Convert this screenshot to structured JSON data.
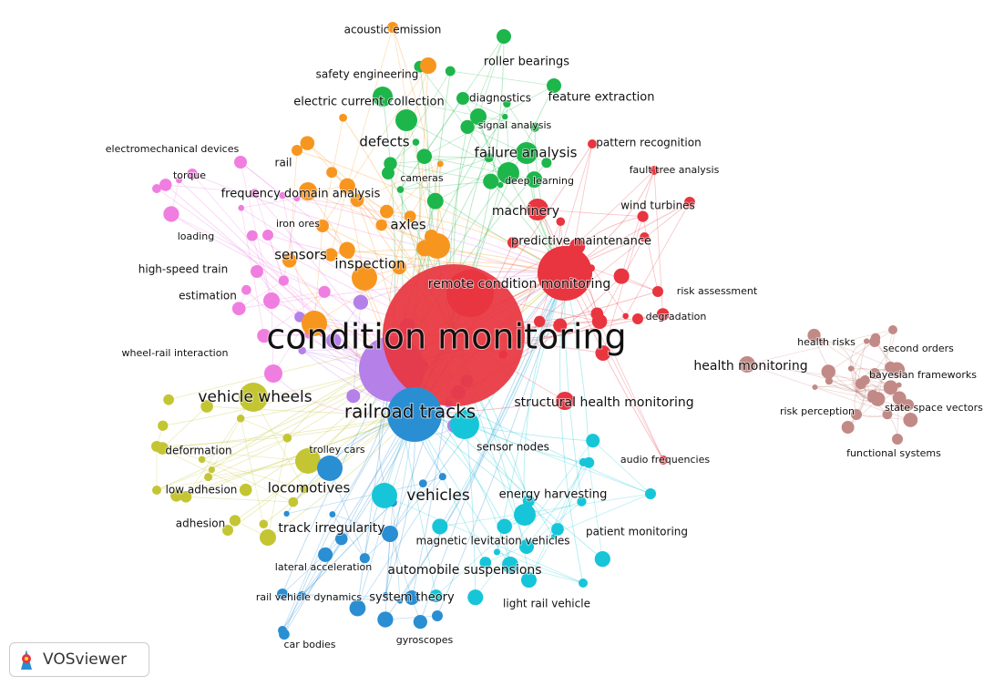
{
  "clusters": [
    {
      "color": "#e8353f",
      "nodes": [
        "condition monitoring",
        "remote condition monitoring",
        "machinery",
        "predictive maintenance",
        "wind turbines",
        "pattern recognition",
        "fault tree analysis",
        "risk assessment",
        "degradation",
        "structural health monitoring",
        "audio frequencies"
      ]
    },
    {
      "color": "#1db64b",
      "nodes": [
        "roller bearings",
        "feature extraction",
        "diagnostics",
        "electric current collection",
        "signal analysis",
        "defects",
        "failure analysis",
        "deep learning",
        "cameras"
      ]
    },
    {
      "color": "#f7961f",
      "nodes": [
        "acoustic emission",
        "safety engineering",
        "rail",
        "frequency domain analysis",
        "iron ores",
        "axles",
        "inspection",
        "sensors"
      ]
    },
    {
      "color": "#f07ee0",
      "nodes": [
        "electromechanical devices",
        "torque",
        "loading",
        "high-speed train",
        "estimation",
        "wheel-rail interaction"
      ]
    },
    {
      "color": "#c4c532",
      "nodes": [
        "vehicle wheels",
        "deformation",
        "low adhesion",
        "adhesion",
        "locomotives",
        "track irregularity"
      ]
    },
    {
      "color": "#2a8ed3",
      "nodes": [
        "railroad tracks",
        "trolley cars",
        "lateral acceleration",
        "rail vehicle dynamics",
        "system theory",
        "car bodies",
        "gyroscopes"
      ]
    },
    {
      "color": "#16c6d8",
      "nodes": [
        "vehicles",
        "sensor nodes",
        "energy harvesting",
        "patient monitoring",
        "magnetic levitation vehicles",
        "automobile suspensions",
        "light rail vehicle"
      ]
    },
    {
      "color": "#c28a86",
      "nodes": [
        "health monitoring",
        "health risks",
        "second orders",
        "bayesian frameworks",
        "state space vectors",
        "risk perception",
        "functional systems"
      ]
    },
    {
      "color": "#b580e8",
      "nodes": []
    }
  ],
  "logo": {
    "text": "VOSviewer"
  }
}
